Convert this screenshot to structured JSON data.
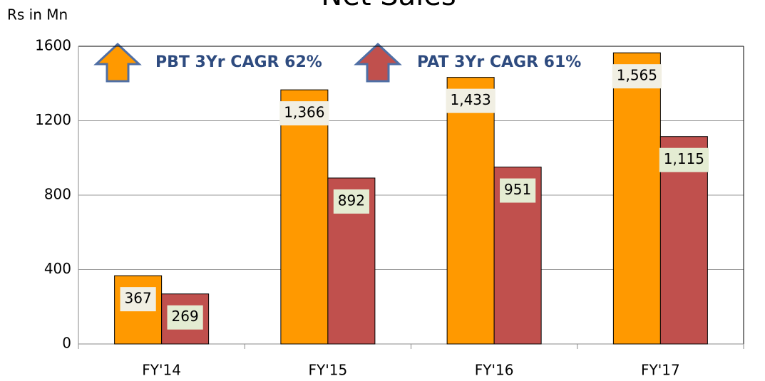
{
  "chart_data": {
    "type": "bar",
    "title": "Net Sales",
    "y_label": "Rs in Mn",
    "annotations": [
      "PBT 3Yr CAGR 62%",
      "PAT 3Yr CAGR 61%"
    ],
    "categories": [
      "FY'14",
      "FY'15",
      "FY'16",
      "FY'17"
    ],
    "series": [
      {
        "color": "#ff9900",
        "values": [
          367,
          1366,
          1433,
          1565
        ],
        "value_labels": [
          "367",
          "1,366",
          "1,433",
          "1,565"
        ]
      },
      {
        "color": "#c0504d",
        "values": [
          269,
          892,
          951,
          1115
        ],
        "value_labels": [
          "269",
          "892",
          "951",
          "1,115"
        ]
      }
    ],
    "ylim": [
      0,
      1600
    ],
    "yticks": [
      0,
      400,
      800,
      1200,
      1600
    ],
    "grid": true
  }
}
